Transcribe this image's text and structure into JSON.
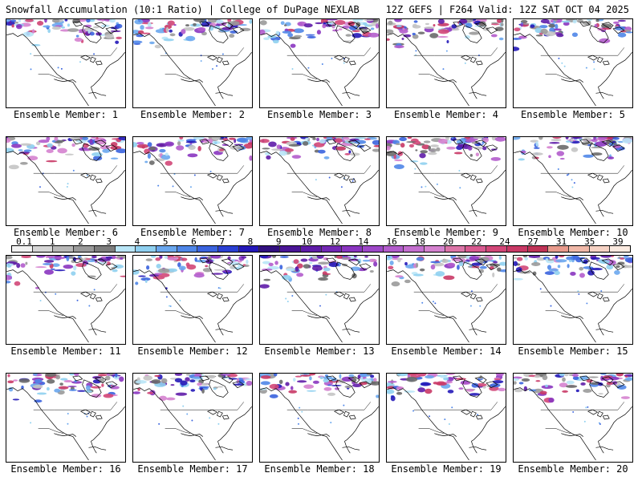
{
  "header": {
    "left_title": "Snowfall Accumulation (10:1 Ratio) | College of DuPage NEXLAB",
    "right_title": "12Z GEFS | F264 Valid: 12Z SAT OCT 04 2025"
  },
  "members": [
    {
      "label": "Ensemble Member: 1"
    },
    {
      "label": "Ensemble Member: 2"
    },
    {
      "label": "Ensemble Member: 3"
    },
    {
      "label": "Ensemble Member: 4"
    },
    {
      "label": "Ensemble Member: 5"
    },
    {
      "label": "Ensemble Member: 6"
    },
    {
      "label": "Ensemble Member: 7"
    },
    {
      "label": "Ensemble Member: 8"
    },
    {
      "label": "Ensemble Member: 9"
    },
    {
      "label": "Ensemble Member: 10"
    },
    {
      "label": "Ensemble Member: 11"
    },
    {
      "label": "Ensemble Member: 12"
    },
    {
      "label": "Ensemble Member: 13"
    },
    {
      "label": "Ensemble Member: 14"
    },
    {
      "label": "Ensemble Member: 15"
    },
    {
      "label": "Ensemble Member: 16"
    },
    {
      "label": "Ensemble Member: 17"
    },
    {
      "label": "Ensemble Member: 18"
    },
    {
      "label": "Ensemble Member: 19"
    },
    {
      "label": "Ensemble Member: 20"
    }
  ],
  "colorbar": {
    "ticks": [
      "0.1",
      "1",
      "2",
      "3",
      "4",
      "5",
      "6",
      "7",
      "8",
      "9",
      "10",
      "12",
      "14",
      "16",
      "18",
      "20",
      "22",
      "24",
      "27",
      "31",
      "35",
      "39"
    ],
    "colors": [
      "#f2f2f2",
      "#d6d6d6",
      "#b8b8b8",
      "#9a9a9a",
      "#7d7d7d",
      "#b9e6f7",
      "#8fd0f0",
      "#6aa7ee",
      "#4f86e8",
      "#3a63de",
      "#2a3fd2",
      "#2418b8",
      "#32107f",
      "#4a1596",
      "#5f1ca8",
      "#7327b4",
      "#8a35c0",
      "#9e48c8",
      "#b25ccc",
      "#c46fcf",
      "#d582cf",
      "#dc75a8",
      "#d85a90",
      "#d24778",
      "#c93966",
      "#bf3357",
      "#e89a8c",
      "#f0b8a8",
      "#f6d2c4",
      "#faeae0"
    ]
  }
}
